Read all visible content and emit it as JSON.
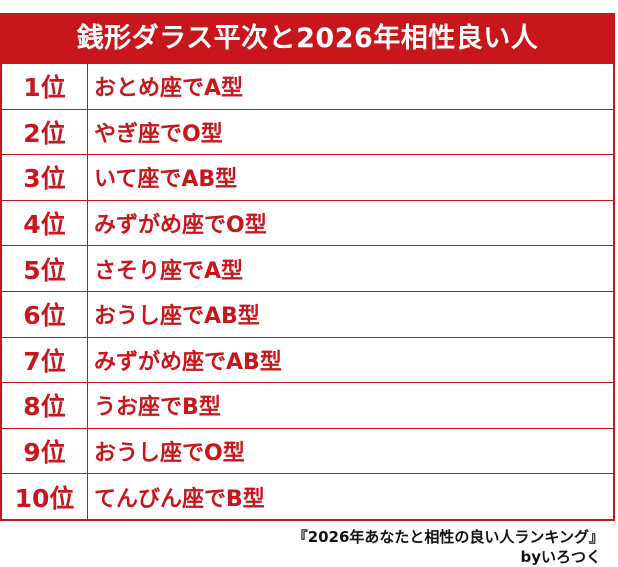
{
  "title": "銭形ダラス平次と2026年相性良い人",
  "rankings": [
    {
      "rank": "1位",
      "sign": "おとめ座でA型"
    },
    {
      "rank": "2位",
      "sign": "やぎ座でO型"
    },
    {
      "rank": "3位",
      "sign": "いて座でAB型"
    },
    {
      "rank": "4位",
      "sign": "みずがめ座でO型"
    },
    {
      "rank": "5位",
      "sign": "さそり座でA型"
    },
    {
      "rank": "6位",
      "sign": "おうし座でAB型"
    },
    {
      "rank": "7位",
      "sign": "みずがめ座でAB型"
    },
    {
      "rank": "8位",
      "sign": "うお座でB型"
    },
    {
      "rank": "9位",
      "sign": "おうし座でO型"
    },
    {
      "rank": "10位",
      "sign": "てんびん座でB型"
    }
  ],
  "footer": {
    "source": "『2026年あなたと相性の良い人ランキング』",
    "credit": "byいろつく"
  },
  "colors": {
    "accent": "#c8161d",
    "background": "#ffffff"
  }
}
